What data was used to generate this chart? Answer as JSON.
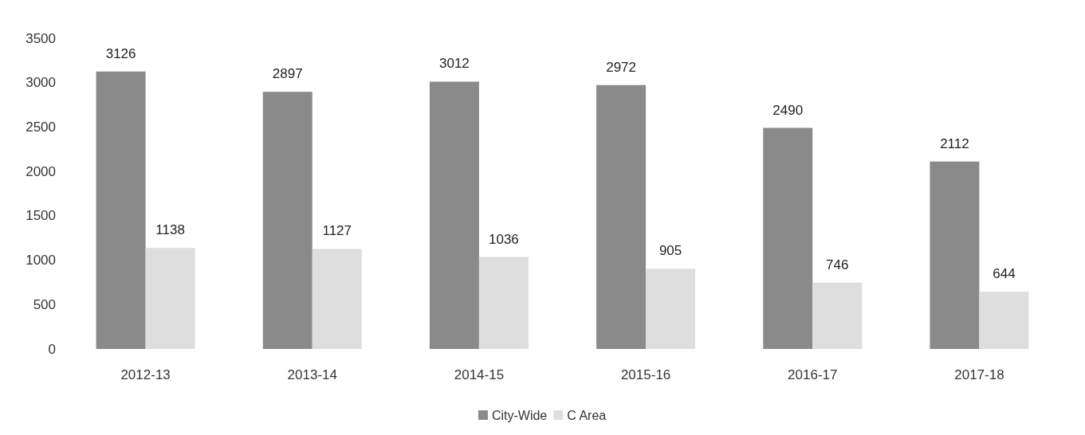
{
  "chart_data": {
    "type": "bar",
    "categories": [
      "2012-13",
      "2013-14",
      "2014-15",
      "2015-16",
      "2016-17",
      "2017-18"
    ],
    "series": [
      {
        "name": "City-Wide",
        "color": "#8a8a8a",
        "values": [
          3126,
          2897,
          3012,
          2972,
          2490,
          2112
        ]
      },
      {
        "name": "C Area",
        "color": "#dedede",
        "values": [
          1138,
          1127,
          1036,
          905,
          746,
          644
        ]
      }
    ],
    "ylim": [
      0,
      3500
    ],
    "yticks": [
      0,
      500,
      1000,
      1500,
      2000,
      2500,
      3000,
      3500
    ],
    "data_labels": true,
    "grid": false,
    "legend": "bottom"
  }
}
